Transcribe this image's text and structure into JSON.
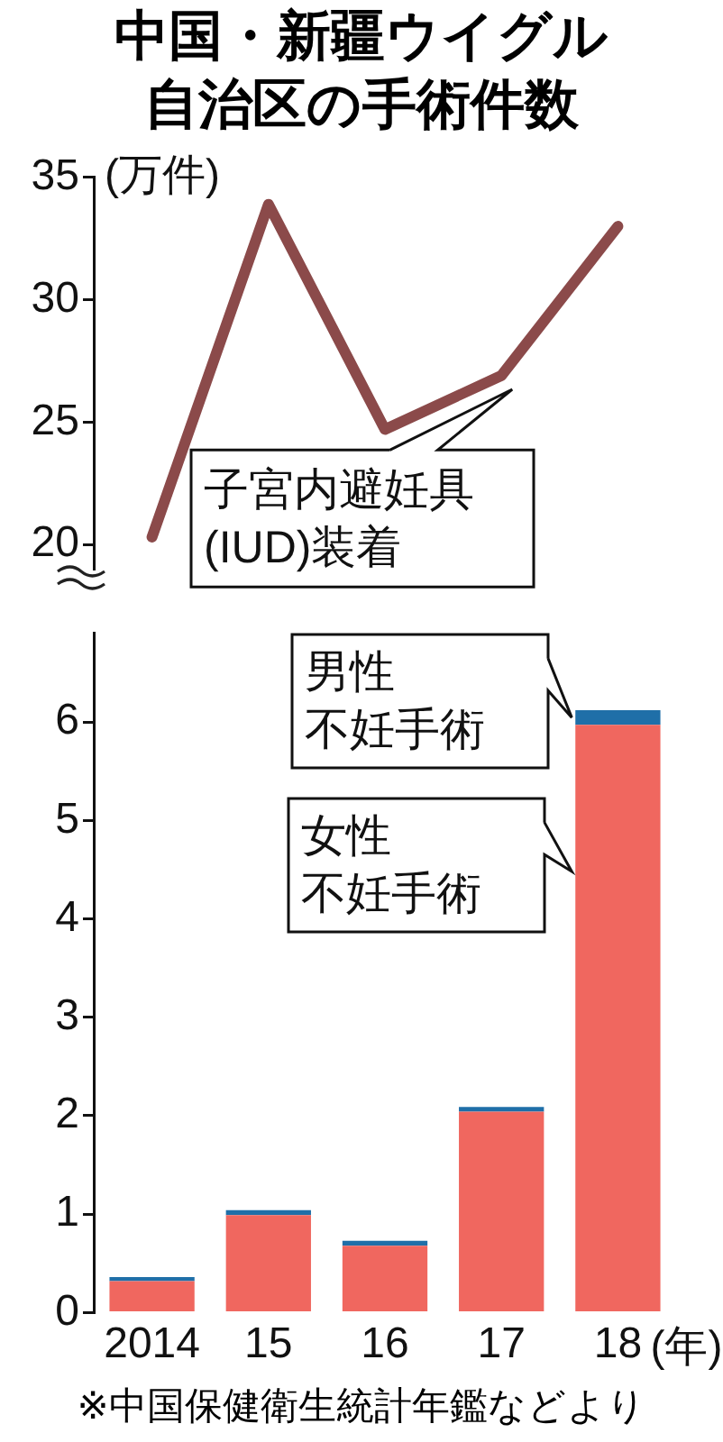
{
  "chart_data": [
    {
      "type": "line",
      "title": "中国・新疆ウイグル自治区の手術件数",
      "ylabel": "(万件)",
      "categories": [
        "2014",
        "15",
        "16",
        "17",
        "18"
      ],
      "tick_labels": "y",
      "marker": "none",
      "ylim": [
        19,
        35
      ],
      "yticks": [
        20,
        25,
        30,
        35
      ],
      "series": [
        {
          "name": "子宮内避妊具(IUD)装着",
          "color": "#8b4a4a",
          "values": [
            20.3,
            33.9,
            24.7,
            26.9,
            33.0
          ]
        }
      ]
    },
    {
      "type": "bar",
      "stacked": true,
      "legend": "top",
      "xlabel": "(年)",
      "categories": [
        "2014",
        "15",
        "16",
        "17",
        "18"
      ],
      "ylim": [
        0,
        6.9
      ],
      "yticks": [
        0,
        1,
        2,
        3,
        4,
        5,
        6
      ],
      "annotations": [
        "※中国保健衛生統計年鑑などより"
      ],
      "series": [
        {
          "name": "女性不妊手術",
          "color": "#f0675f",
          "values": [
            0.32,
            0.99,
            0.68,
            2.04,
            5.97
          ]
        },
        {
          "name": "男性不妊手術",
          "color": "#1f6fa8",
          "values": [
            0.04,
            0.05,
            0.05,
            0.05,
            0.15
          ]
        }
      ]
    }
  ]
}
